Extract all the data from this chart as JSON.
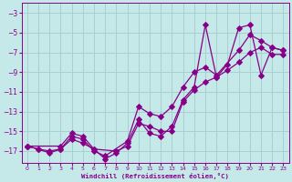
{
  "xlabel": "Windchill (Refroidissement éolien,°C)",
  "background_color": "#c5e8e8",
  "grid_color": "#a8d0d0",
  "line_color": "#880088",
  "xlim": [
    -0.5,
    23.5
  ],
  "ylim": [
    -18.2,
    -2.0
  ],
  "xticks": [
    0,
    1,
    2,
    3,
    4,
    5,
    6,
    7,
    8,
    9,
    10,
    11,
    12,
    13,
    14,
    15,
    16,
    17,
    18,
    19,
    20,
    21,
    22,
    23
  ],
  "ytick_values": [
    -17,
    -15,
    -13,
    -11,
    -9,
    -7,
    -5,
    -3
  ],
  "curve1_x": [
    0,
    1,
    2,
    3,
    4,
    5,
    6,
    7,
    9,
    10,
    11,
    12,
    13,
    14,
    15,
    16,
    17,
    19,
    20,
    21,
    22,
    23
  ],
  "curve1_y": [
    -16.5,
    -16.8,
    -17.0,
    -16.8,
    -15.5,
    -15.8,
    -17.0,
    -17.5,
    -16.0,
    -12.5,
    -13.2,
    -13.5,
    -12.5,
    -10.5,
    -9.0,
    -8.5,
    -9.3,
    -6.8,
    -5.2,
    -5.8,
    -6.5,
    -6.8
  ],
  "curve2_x": [
    0,
    1,
    2,
    3,
    4,
    5,
    6,
    8,
    9,
    10,
    11,
    12,
    13,
    14,
    15,
    16,
    17,
    18,
    19,
    20,
    21,
    22,
    23
  ],
  "curve2_y": [
    -16.5,
    -16.8,
    -17.2,
    -16.8,
    -15.8,
    -16.2,
    -16.8,
    -17.0,
    -16.5,
    -14.2,
    -14.5,
    -15.0,
    -15.0,
    -12.0,
    -10.8,
    -10.0,
    -9.5,
    -8.8,
    -8.0,
    -7.0,
    -6.5,
    -7.2,
    -7.2
  ],
  "curve3_x": [
    0,
    3,
    4,
    5,
    6,
    7,
    8,
    9,
    10,
    11,
    12,
    13,
    14,
    15,
    16,
    17,
    18,
    19,
    20,
    21,
    22,
    23
  ],
  "curve3_y": [
    -16.5,
    -16.5,
    -15.2,
    -15.5,
    -16.8,
    -17.8,
    -17.2,
    -16.2,
    -13.8,
    -15.2,
    -15.5,
    -14.5,
    -11.8,
    -10.5,
    -4.2,
    -9.5,
    -8.2,
    -4.5,
    -4.2,
    -9.3,
    -6.5,
    -6.8
  ]
}
